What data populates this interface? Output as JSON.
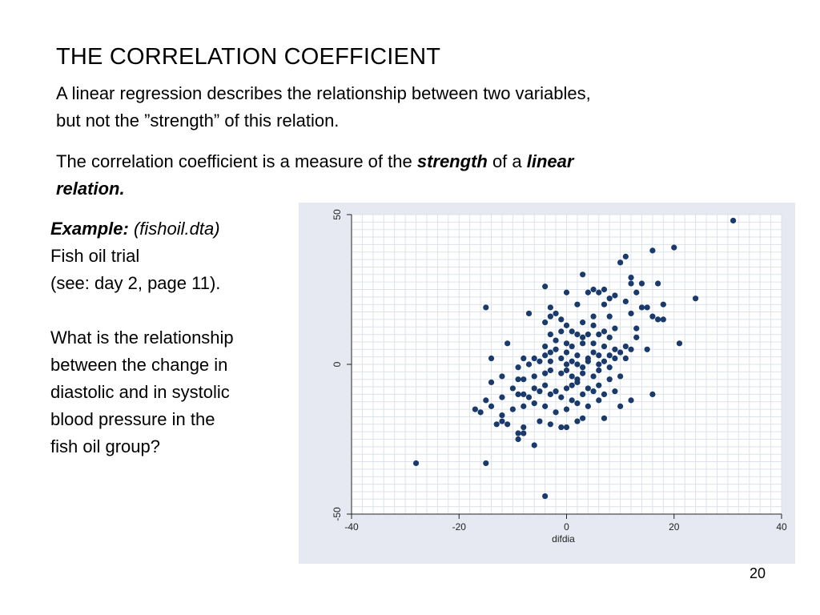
{
  "slide": {
    "title": "THE CORRELATION COEFFICIENT",
    "para1_line1": "A linear regression describes the relationship between two variables,",
    "para1_line2": "but not the ”strength” of this relation.",
    "para2_a": "The correlation coefficient is a measure of the ",
    "para2_strength": "strength",
    "para2_b": " of a ",
    "para2_linear": "linear",
    "para2_relation": "relation.",
    "example_label": "Example:",
    "example_file": "(fishoil.dta)",
    "example_line2": "Fish oil trial",
    "example_line3": "(see: day 2, page 11).",
    "question_lines": [
      "What is the relationship",
      "between the change in",
      "diastolic and in systolic",
      "blood pressure in the",
      "fish oil group?"
    ],
    "page_number": "20"
  },
  "chart_data": {
    "type": "scatter",
    "xlabel": "difdia",
    "ylabel": "",
    "xlim": [
      -40,
      40
    ],
    "ylim": [
      -50,
      50
    ],
    "xticks": [
      -40,
      -20,
      0,
      20,
      40
    ],
    "yticks": [
      -50,
      0,
      50
    ],
    "grid": true,
    "colors": {
      "marker": "#1a3a6b",
      "plot_bg": "#ffffff",
      "panel_bg": "#e6e9f2",
      "grid": "#dce3ea"
    },
    "points": [
      [
        31,
        48
      ],
      [
        20,
        39
      ],
      [
        16,
        38
      ],
      [
        11,
        36
      ],
      [
        10,
        34
      ],
      [
        3,
        30
      ],
      [
        -4,
        26
      ],
      [
        7,
        25
      ],
      [
        6,
        24
      ],
      [
        5,
        25
      ],
      [
        12,
        29
      ],
      [
        12,
        27
      ],
      [
        14,
        27
      ],
      [
        17,
        27
      ],
      [
        0,
        24
      ],
      [
        4,
        24
      ],
      [
        9,
        23
      ],
      [
        13,
        24
      ],
      [
        24,
        22
      ],
      [
        -15,
        19
      ],
      [
        -3,
        19
      ],
      [
        2,
        20
      ],
      [
        7,
        20
      ],
      [
        8,
        22
      ],
      [
        11,
        21
      ],
      [
        14,
        19
      ],
      [
        15,
        19
      ],
      [
        18,
        20
      ],
      [
        -7,
        17
      ],
      [
        -2,
        17
      ],
      [
        -1,
        15
      ],
      [
        5,
        16
      ],
      [
        8,
        16
      ],
      [
        12,
        17
      ],
      [
        16,
        16
      ],
      [
        17,
        15
      ],
      [
        18,
        15
      ],
      [
        -4,
        14
      ],
      [
        -3,
        16
      ],
      [
        0,
        13
      ],
      [
        3,
        14
      ],
      [
        5,
        13
      ],
      [
        7,
        11
      ],
      [
        9,
        12
      ],
      [
        13,
        12
      ],
      [
        -3,
        10
      ],
      [
        -1,
        11
      ],
      [
        1,
        11
      ],
      [
        2,
        10
      ],
      [
        3,
        9
      ],
      [
        4,
        10
      ],
      [
        6,
        10
      ],
      [
        8,
        9
      ],
      [
        13,
        9
      ],
      [
        -11,
        7
      ],
      [
        -4,
        6
      ],
      [
        -2,
        8
      ],
      [
        0,
        7
      ],
      [
        1,
        6
      ],
      [
        3,
        7
      ],
      [
        5,
        7
      ],
      [
        7,
        6
      ],
      [
        9,
        5
      ],
      [
        11,
        6
      ],
      [
        15,
        5
      ],
      [
        21,
        7
      ],
      [
        -14,
        2
      ],
      [
        -8,
        2
      ],
      [
        -6,
        2
      ],
      [
        -4,
        3
      ],
      [
        -3,
        4
      ],
      [
        -2,
        5
      ],
      [
        0,
        4
      ],
      [
        2,
        3
      ],
      [
        4,
        2
      ],
      [
        5,
        4
      ],
      [
        6,
        3
      ],
      [
        8,
        3
      ],
      [
        10,
        4
      ],
      [
        12,
        5
      ],
      [
        -9,
        -1
      ],
      [
        -7,
        0
      ],
      [
        -5,
        1
      ],
      [
        -3,
        1
      ],
      [
        -1,
        2
      ],
      [
        0,
        0
      ],
      [
        1,
        1
      ],
      [
        2,
        0
      ],
      [
        3,
        -1
      ],
      [
        4,
        1
      ],
      [
        6,
        0
      ],
      [
        7,
        1
      ],
      [
        9,
        2
      ],
      [
        11,
        2
      ],
      [
        -12,
        -4
      ],
      [
        -9,
        -5
      ],
      [
        -8,
        -5
      ],
      [
        -6,
        -4
      ],
      [
        -4,
        -3
      ],
      [
        -3,
        -2
      ],
      [
        -1,
        -3
      ],
      [
        0,
        -2
      ],
      [
        1,
        -4
      ],
      [
        2,
        -5
      ],
      [
        3,
        -3
      ],
      [
        5,
        -4
      ],
      [
        6,
        -2
      ],
      [
        8,
        -1
      ],
      [
        -14,
        -6
      ],
      [
        -10,
        -8
      ],
      [
        -8,
        -10
      ],
      [
        -6,
        -8
      ],
      [
        -4,
        -7
      ],
      [
        -2,
        -9
      ],
      [
        0,
        -8
      ],
      [
        1,
        -7
      ],
      [
        2,
        -6
      ],
      [
        4,
        -8
      ],
      [
        6,
        -7
      ],
      [
        8,
        -5
      ],
      [
        10,
        -4
      ],
      [
        -15,
        -12
      ],
      [
        -12,
        -11
      ],
      [
        -9,
        -10
      ],
      [
        -7,
        -11
      ],
      [
        -5,
        -9
      ],
      [
        -3,
        -10
      ],
      [
        -1,
        -11
      ],
      [
        1,
        -12
      ],
      [
        3,
        -10
      ],
      [
        5,
        -9
      ],
      [
        7,
        -10
      ],
      [
        9,
        -9
      ],
      [
        12,
        -12
      ],
      [
        16,
        -10
      ],
      [
        -17,
        -15
      ],
      [
        -16,
        -16
      ],
      [
        -14,
        -14
      ],
      [
        -12,
        -17
      ],
      [
        -10,
        -15
      ],
      [
        -8,
        -14
      ],
      [
        -6,
        -13
      ],
      [
        -4,
        -14
      ],
      [
        -2,
        -16
      ],
      [
        0,
        -15
      ],
      [
        2,
        -13
      ],
      [
        4,
        -14
      ],
      [
        6,
        -12
      ],
      [
        10,
        -14
      ],
      [
        -13,
        -20
      ],
      [
        -11,
        -20
      ],
      [
        -8,
        -21
      ],
      [
        -5,
        -19
      ],
      [
        -3,
        -20
      ],
      [
        0,
        -21
      ],
      [
        2,
        -19
      ],
      [
        3,
        -18
      ],
      [
        7,
        -18
      ],
      [
        -9,
        -23
      ],
      [
        -8,
        -23
      ],
      [
        -6,
        -27
      ],
      [
        -9,
        -25
      ],
      [
        -28,
        -33
      ],
      [
        -15,
        -33
      ],
      [
        -4,
        -44
      ],
      [
        -12,
        -19
      ],
      [
        -1,
        -21
      ]
    ]
  }
}
